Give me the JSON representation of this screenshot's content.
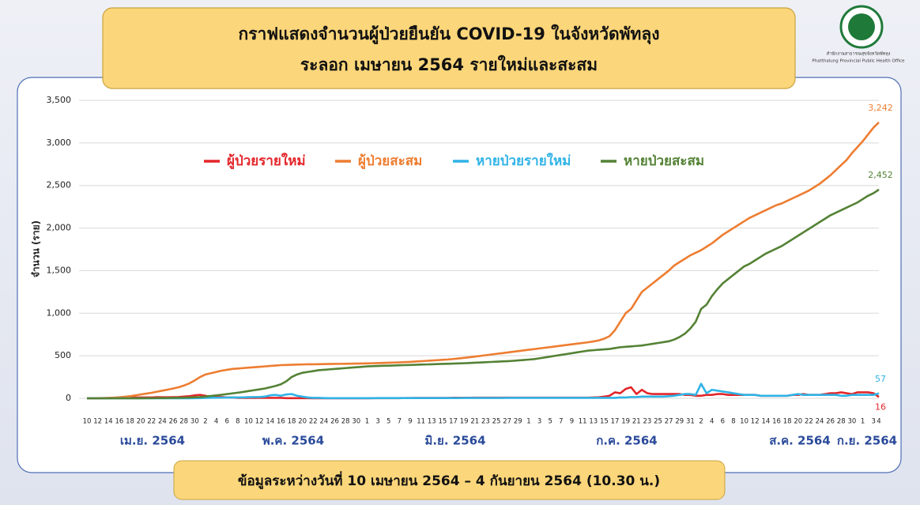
{
  "chart_data": {
    "type": "line",
    "title": "กราฟแสดงจำนวนผู้ป่วยยืนยัน COVID-19 ในจังหวัดพัทลุง",
    "subtitle": "ระลอก เมษายน 2564 รายใหม่และสะสม",
    "y_label": "จำนวน (ราย)",
    "footer": "ข้อมูลระหว่างวันที่ 10 เมษายน 2564 – 4 กันยายน 2564 (10.30 น.)",
    "logo": {
      "line1": "สำนักงานสาธารณสุขจังหวัดพัทลุง",
      "line2": "Phatthalung Provincial Public Health Office"
    },
    "month_labels": [
      "เม.ย. 2564",
      "พ.ค. 2564",
      "มิ.ย. 2564",
      "ก.ค. 2564",
      "ส.ค. 2564",
      "ก.ย. 2564"
    ],
    "categories": [
      "10",
      null,
      "12",
      null,
      "14",
      null,
      "16",
      null,
      "18",
      null,
      "20",
      null,
      "22",
      null,
      "24",
      null,
      "26",
      null,
      "28",
      null,
      "30",
      null,
      "2",
      null,
      "4",
      null,
      "6",
      null,
      "8",
      null,
      "10",
      null,
      "12",
      null,
      "14",
      null,
      "16",
      null,
      "18",
      null,
      "20",
      null,
      "22",
      null,
      "24",
      null,
      "26",
      null,
      "28",
      null,
      "30",
      null,
      "1",
      null,
      "3",
      null,
      "5",
      null,
      "7",
      null,
      "9",
      null,
      "11",
      null,
      "13",
      null,
      "15",
      null,
      "17",
      null,
      "19",
      null,
      "21",
      null,
      "23",
      null,
      "25",
      null,
      "27",
      null,
      "29",
      null,
      "1",
      null,
      "3",
      null,
      "5",
      null,
      "7",
      null,
      "9",
      null,
      "11",
      null,
      "13",
      null,
      "15",
      null,
      "17",
      null,
      "19",
      null,
      "21",
      null,
      "23",
      null,
      "25",
      null,
      "27",
      null,
      "29",
      null,
      "31",
      null,
      "2",
      null,
      "4",
      null,
      "6",
      null,
      "8",
      null,
      "10",
      null,
      "12",
      null,
      "14",
      null,
      "16",
      null,
      "18",
      null,
      "20",
      null,
      "22",
      null,
      "24",
      null,
      "26",
      null,
      "28",
      null,
      "30",
      null,
      "1",
      null,
      "3",
      "4"
    ],
    "ylim": [
      0,
      3500
    ],
    "yticks": [
      0,
      500,
      {
        "value": 1000,
        "label": "1,000"
      },
      {
        "value": 1500,
        "label": "1,500"
      },
      {
        "value": 2000,
        "label": "2,000"
      },
      {
        "value": 2500,
        "label": "2,500"
      },
      {
        "value": 3000,
        "label": "3,000"
      },
      {
        "value": 3500,
        "label": "3,500"
      }
    ],
    "grid": true,
    "series": [
      {
        "name": "ผู้ป่วยรายใหม่",
        "color": "#e3262a",
        "values": [
          0,
          1,
          1,
          1,
          2,
          3,
          4,
          6,
          7,
          10,
          10,
          10,
          10,
          13,
          12,
          12,
          13,
          15,
          20,
          25,
          35,
          40,
          30,
          15,
          15,
          15,
          10,
          10,
          5,
          5,
          5,
          5,
          5,
          5,
          5,
          5,
          5,
          2,
          2,
          2,
          2,
          2,
          0,
          1,
          1,
          1,
          1,
          1,
          1,
          1,
          1,
          1,
          1,
          2,
          2,
          2,
          2,
          2,
          2,
          3,
          3,
          4,
          4,
          4,
          4,
          4,
          4,
          4,
          6,
          6,
          7,
          7,
          8,
          8,
          8,
          8,
          8,
          8,
          8,
          8,
          8,
          8,
          8,
          8,
          8,
          8,
          8,
          8,
          8,
          8,
          8,
          8,
          8,
          8,
          10,
          12,
          20,
          30,
          70,
          60,
          110,
          130,
          50,
          100,
          60,
          50,
          50,
          50,
          50,
          50,
          50,
          40,
          40,
          30,
          30,
          40,
          40,
          50,
          50,
          40,
          40,
          40,
          40,
          40,
          40,
          30,
          30,
          30,
          30,
          30,
          30,
          40,
          40,
          50,
          40,
          40,
          40,
          50,
          60,
          60,
          70,
          60,
          50,
          70,
          70,
          70,
          60,
          16
        ]
      },
      {
        "name": "ผู้ป่วยสะสม",
        "color": "#ed7d31",
        "end_label": "3,242",
        "values": [
          0,
          1,
          2,
          3,
          5,
          8,
          12,
          18,
          25,
          35,
          45,
          55,
          65,
          78,
          90,
          102,
          115,
          130,
          150,
          175,
          210,
          250,
          280,
          295,
          310,
          325,
          335,
          345,
          350,
          355,
          360,
          365,
          370,
          375,
          380,
          385,
          390,
          392,
          394,
          396,
          398,
          400,
          400,
          401,
          402,
          403,
          404,
          405,
          406,
          407,
          408,
          409,
          410,
          412,
          414,
          416,
          418,
          420,
          422,
          425,
          428,
          432,
          436,
          440,
          444,
          448,
          452,
          456,
          462,
          468,
          475,
          482,
          490,
          498,
          506,
          514,
          522,
          530,
          538,
          546,
          554,
          562,
          570,
          578,
          586,
          594,
          602,
          610,
          618,
          626,
          634,
          642,
          650,
          658,
          668,
          680,
          700,
          730,
          800,
          900,
          1000,
          1050,
          1150,
          1250,
          1300,
          1350,
          1400,
          1450,
          1500,
          1560,
          1600,
          1640,
          1680,
          1710,
          1740,
          1780,
          1820,
          1870,
          1920,
          1960,
          2000,
          2040,
          2080,
          2120,
          2150,
          2180,
          2210,
          2240,
          2270,
          2290,
          2320,
          2350,
          2380,
          2410,
          2440,
          2480,
          2520,
          2570,
          2620,
          2680,
          2740,
          2800,
          2880,
          2950,
          3020,
          3100,
          3180,
          3242
        ]
      },
      {
        "name": "หายป่วยรายใหม่",
        "color": "#2fb3e6",
        "values": [
          0,
          0,
          0,
          0,
          0,
          0,
          0,
          0,
          0,
          0,
          0,
          0,
          0,
          0,
          0,
          0,
          0,
          0,
          1,
          1,
          2,
          3,
          5,
          6,
          7,
          8,
          9,
          10,
          10,
          11,
          13,
          15,
          15,
          20,
          35,
          40,
          30,
          45,
          50,
          30,
          20,
          10,
          5,
          5,
          3,
          2,
          2,
          2,
          2,
          2,
          2,
          2,
          2,
          2,
          3,
          3,
          3,
          3,
          3,
          3,
          3,
          3,
          3,
          3,
          3,
          3,
          3,
          3,
          3,
          3,
          4,
          4,
          4,
          4,
          4,
          4,
          4,
          4,
          5,
          5,
          5,
          5,
          5,
          5,
          5,
          5,
          5,
          5,
          5,
          5,
          5,
          5,
          5,
          5,
          5,
          5,
          5,
          5,
          5,
          10,
          10,
          15,
          15,
          20,
          20,
          20,
          20,
          20,
          25,
          30,
          40,
          50,
          50,
          40,
          170,
          60,
          100,
          90,
          80,
          70,
          60,
          50,
          40,
          40,
          40,
          30,
          30,
          30,
          30,
          30,
          30,
          40,
          50,
          40,
          40,
          40,
          40,
          40,
          40,
          40,
          30,
          30,
          40,
          40,
          40,
          40,
          40,
          57
        ]
      },
      {
        "name": "หายป่วยสะสม",
        "color": "#548235",
        "end_label": "2,452",
        "values": [
          0,
          0,
          0,
          0,
          0,
          0,
          0,
          0,
          0,
          1,
          1,
          2,
          2,
          3,
          3,
          4,
          5,
          6,
          8,
          10,
          12,
          15,
          20,
          28,
          35,
          42,
          50,
          58,
          66,
          75,
          85,
          95,
          105,
          115,
          130,
          145,
          165,
          200,
          250,
          280,
          300,
          310,
          320,
          330,
          335,
          340,
          345,
          350,
          355,
          360,
          365,
          370,
          375,
          378,
          380,
          382,
          384,
          386,
          388,
          390,
          392,
          394,
          396,
          398,
          400,
          402,
          404,
          406,
          408,
          410,
          412,
          415,
          418,
          421,
          424,
          427,
          430,
          433,
          436,
          440,
          445,
          450,
          455,
          460,
          470,
          480,
          490,
          500,
          510,
          520,
          530,
          540,
          550,
          560,
          565,
          570,
          575,
          580,
          590,
          600,
          605,
          610,
          615,
          620,
          630,
          640,
          650,
          660,
          670,
          690,
          720,
          760,
          820,
          900,
          1050,
          1100,
          1200,
          1280,
          1350,
          1400,
          1450,
          1500,
          1550,
          1580,
          1620,
          1660,
          1700,
          1730,
          1760,
          1790,
          1830,
          1870,
          1910,
          1950,
          1990,
          2030,
          2070,
          2110,
          2150,
          2180,
          2210,
          2240,
          2270,
          2300,
          2340,
          2380,
          2410,
          2452
        ]
      }
    ]
  }
}
